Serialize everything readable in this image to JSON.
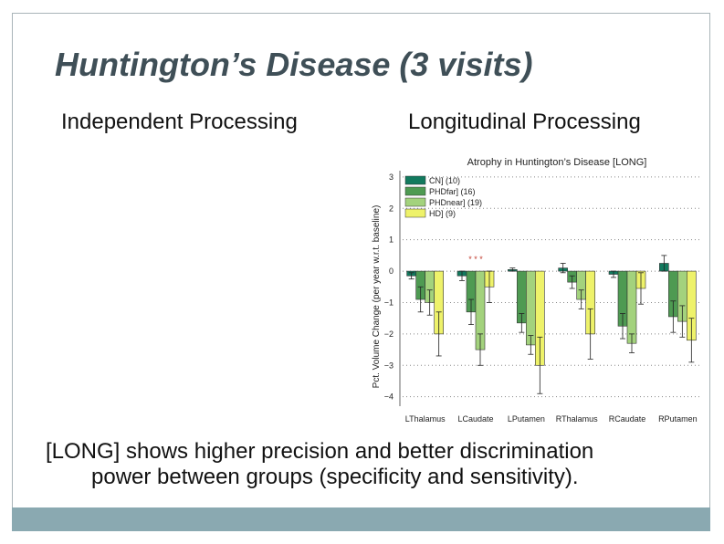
{
  "slide": {
    "title": "Huntington’s Disease (3 visits)",
    "left_heading": "Independent Processing",
    "right_heading": "Longitudinal Processing",
    "caption_line1": "[LONG] shows higher precision and better discrimination",
    "caption_line2": "power between groups (specificity and sensitivity).",
    "frame_color": "#a9b4b8",
    "footer_color": "#8aa9b1"
  },
  "chart_data": {
    "type": "bar",
    "title": "Atrophy in Huntington’s Disease [LONG]",
    "xlabel": "",
    "ylabel": "Pct. Volume Change (per year w.r.t. baseline)",
    "ylim": [
      -4.3,
      3.2
    ],
    "yticks": [
      3,
      2,
      1,
      0,
      -1,
      -2,
      -3,
      -4
    ],
    "grid": "dotted horizontal",
    "legend_position": "top-left",
    "categories": [
      "LThalamus",
      "LCaudate",
      "LPutamen",
      "RThalamus",
      "RCaudate",
      "RPutamen"
    ],
    "series": [
      {
        "name": "CN] (10)",
        "color": "#127a5e",
        "values": [
          -0.15,
          -0.15,
          0.05,
          0.1,
          -0.1,
          0.25
        ],
        "err": [
          0.1,
          0.15,
          0.05,
          0.15,
          0.1,
          0.25
        ]
      },
      {
        "name": "PHDfar] (16)",
        "color": "#4e9a52",
        "values": [
          -0.9,
          -1.3,
          -1.65,
          -0.35,
          -1.75,
          -1.45
        ],
        "err": [
          0.4,
          0.4,
          0.3,
          0.2,
          0.4,
          0.5
        ]
      },
      {
        "name": "PHDnear] (19)",
        "color": "#a3d27d",
        "values": [
          -1.0,
          -2.5,
          -2.35,
          -0.9,
          -2.3,
          -1.6
        ],
        "err": [
          0.4,
          0.5,
          0.3,
          0.3,
          0.3,
          0.5
        ]
      },
      {
        "name": "HD] (9)",
        "color": "#eef26a",
        "values": [
          -2.0,
          -0.5,
          -3.0,
          -2.0,
          -0.55,
          -2.2
        ],
        "err": [
          0.7,
          0.5,
          0.9,
          0.8,
          0.5,
          0.7
        ]
      }
    ],
    "annotations": [
      {
        "text": "* * *",
        "category": "LCaudate",
        "y": 0.3
      }
    ]
  }
}
